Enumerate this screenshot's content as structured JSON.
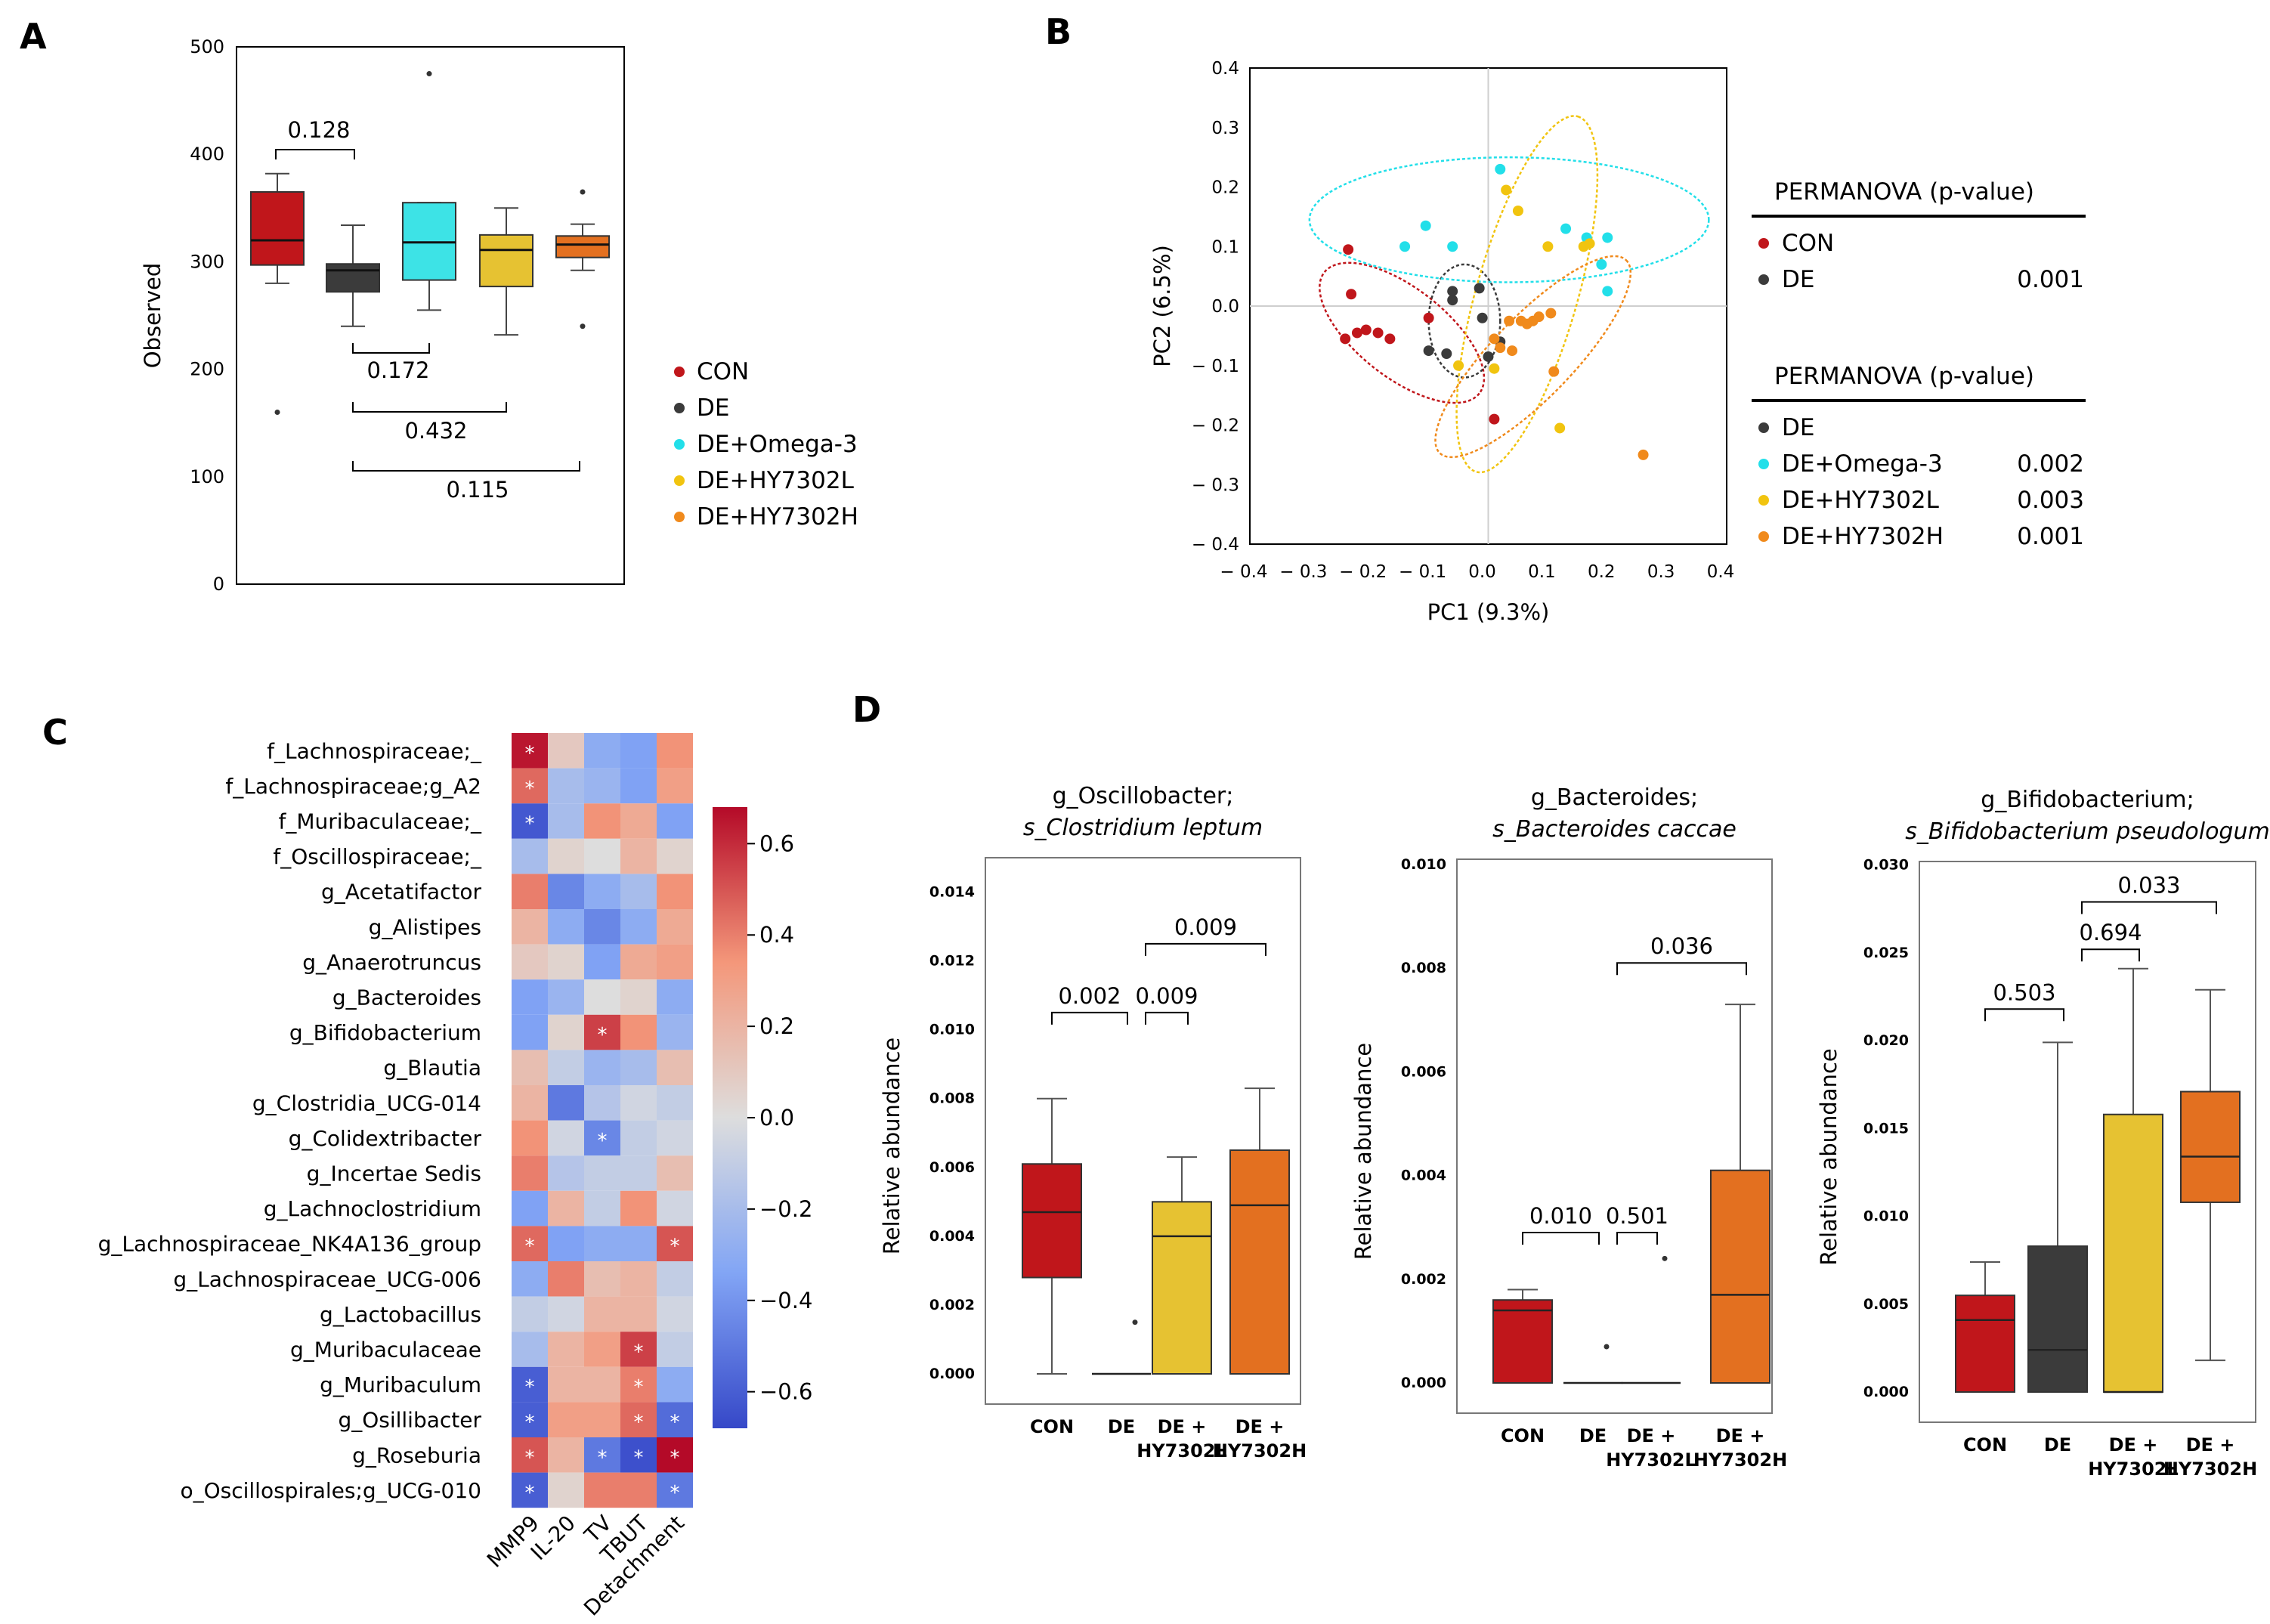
{
  "panel_labels": {
    "A": "A",
    "B": "B",
    "C": "C",
    "D": "D"
  },
  "groups": [
    {
      "name": "CON",
      "color": "#c0161b"
    },
    {
      "name": "DE",
      "color": "#3b3b3b"
    },
    {
      "name": "DE+Omega-3",
      "color": "#22dfe9"
    },
    {
      "name": "DE+HY7302L",
      "color": "#f1c40f"
    },
    {
      "name": "DE+HY7302H",
      "color": "#f08a1c"
    }
  ],
  "chart_data": [
    {
      "panel": "A",
      "type": "box",
      "ylabel": "Observed",
      "ylim": [
        0,
        500
      ],
      "yticks": [
        0,
        100,
        200,
        300,
        400,
        500
      ],
      "boxes": [
        {
          "group": "CON",
          "whisker_low": 280,
          "q1": 297,
          "median": 320,
          "q3": 365,
          "whisker_high": 382,
          "outliers": [
            160
          ]
        },
        {
          "group": "DE",
          "whisker_low": 240,
          "q1": 272,
          "median": 292,
          "q3": 298,
          "whisker_high": 334,
          "outliers": []
        },
        {
          "group": "DE+Omega-3",
          "whisker_low": 255,
          "q1": 283,
          "median": 318,
          "q3": 355,
          "whisker_high": 355,
          "outliers": [
            475
          ]
        },
        {
          "group": "DE+HY7302L",
          "whisker_low": 232,
          "q1": 277,
          "median": 311,
          "q3": 325,
          "whisker_high": 350,
          "outliers": []
        },
        {
          "group": "DE+HY7302H",
          "whisker_low": 292,
          "q1": 304,
          "median": 316,
          "q3": 324,
          "whisker_high": 335,
          "outliers": [
            240,
            365
          ]
        }
      ],
      "brackets": [
        {
          "from": 0,
          "to": 1,
          "label": "0.128",
          "position": "above"
        },
        {
          "from": 1,
          "to": 2,
          "label": "0.172",
          "position": "below"
        },
        {
          "from": 1,
          "to": 3,
          "label": "0.432",
          "position": "below"
        },
        {
          "from": 1,
          "to": 4,
          "label": "0.115",
          "position": "below"
        }
      ]
    },
    {
      "panel": "B",
      "type": "scatter",
      "xlabel": "PC1 (9.3%)",
      "ylabel": "PC2 (6.5%)",
      "xlim": [
        -0.4,
        0.4
      ],
      "ylim": [
        -0.4,
        0.4
      ],
      "xticks": [
        "− 0.4",
        "− 0.3",
        "− 0.2",
        "− 0.1",
        "0.0",
        "0.1",
        "0.2",
        "0.3",
        "0.4"
      ],
      "yticks": [
        "0.4",
        "0.3",
        "0.2",
        "0.1",
        "0.0",
        "− 0.1",
        "− 0.2",
        "− 0.3",
        "− 0.4"
      ],
      "series": [
        {
          "group": "CON",
          "points": [
            [
              -0.235,
              0.095
            ],
            [
              -0.23,
              0.02
            ],
            [
              -0.24,
              -0.055
            ],
            [
              -0.22,
              -0.045
            ],
            [
              -0.205,
              -0.04
            ],
            [
              -0.185,
              -0.045
            ],
            [
              -0.165,
              -0.055
            ],
            [
              -0.1,
              -0.02
            ],
            [
              0.01,
              -0.19
            ]
          ]
        },
        {
          "group": "DE",
          "points": [
            [
              -0.06,
              0.025
            ],
            [
              -0.06,
              0.01
            ],
            [
              -0.015,
              0.03
            ],
            [
              -0.1,
              -0.075
            ],
            [
              -0.07,
              -0.08
            ],
            [
              -0.01,
              -0.02
            ],
            [
              0.0,
              -0.085
            ],
            [
              0.02,
              -0.06
            ]
          ]
        },
        {
          "group": "DE+Omega-3",
          "points": [
            [
              0.02,
              0.23
            ],
            [
              0.13,
              0.13
            ],
            [
              0.165,
              0.115
            ],
            [
              0.2,
              0.115
            ],
            [
              0.19,
              0.07
            ],
            [
              0.2,
              0.025
            ],
            [
              -0.105,
              0.135
            ],
            [
              -0.14,
              0.1
            ],
            [
              -0.06,
              0.1
            ]
          ]
        },
        {
          "group": "DE+HY7302L",
          "points": [
            [
              0.03,
              0.195
            ],
            [
              0.05,
              0.16
            ],
            [
              0.1,
              0.1
            ],
            [
              0.16,
              0.1
            ],
            [
              0.17,
              0.105
            ],
            [
              -0.05,
              -0.1
            ],
            [
              0.01,
              -0.105
            ],
            [
              0.12,
              -0.205
            ]
          ]
        },
        {
          "group": "DE+HY7302H",
          "points": [
            [
              0.035,
              -0.025
            ],
            [
              0.055,
              -0.025
            ],
            [
              0.075,
              -0.025
            ],
            [
              0.065,
              -0.03
            ],
            [
              0.085,
              -0.018
            ],
            [
              0.105,
              -0.012
            ],
            [
              0.01,
              -0.055
            ],
            [
              0.02,
              -0.07
            ],
            [
              0.04,
              -0.075
            ],
            [
              0.11,
              -0.11
            ],
            [
              0.26,
              -0.25
            ]
          ]
        }
      ],
      "legend": [
        {
          "title": "PERMANOVA (p-value)",
          "rows": [
            {
              "group": "CON",
              "p": ""
            },
            {
              "group": "DE",
              "p": "0.001"
            }
          ]
        },
        {
          "title": "PERMANOVA (p-value)",
          "rows": [
            {
              "group": "DE",
              "p": ""
            },
            {
              "group": "DE+Omega-3",
              "p": "0.002"
            },
            {
              "group": "DE+HY7302L",
              "p": "0.003"
            },
            {
              "group": "DE+HY7302H",
              "p": "0.001"
            }
          ]
        }
      ]
    },
    {
      "panel": "C",
      "type": "heatmap",
      "rows": [
        "f_Lachnospiraceae;_",
        "f_Lachnospiraceae;g_A2",
        "f_Muribaculaceae;_",
        "f_Oscillospiraceae;_",
        "g_Acetatifactor",
        "g_Alistipes",
        "g_Anaerotruncus",
        "g_Bacteroides",
        "g_Bifidobacterium",
        "g_Blautia",
        "g_Clostridia_UCG-014",
        "g_Colidextribacter",
        "g_Incertae Sedis",
        "g_Lachnoclostridium",
        "g_Lachnospiraceae_NK4A136_group",
        "g_Lachnospiraceae_UCG-006",
        "g_Lactobacillus",
        "g_Muribaculaceae",
        "g_Muribaculum",
        "g_Osillibacter",
        "g_Roseburia",
        "o_Oscillospirales;g_UCG-010"
      ],
      "columns": [
        "MMP9",
        "IL-20",
        "TV",
        "TBUT",
        "Detachment"
      ],
      "values": [
        [
          0.65,
          0.1,
          -0.3,
          -0.35,
          0.35
        ],
        [
          0.45,
          -0.2,
          -0.25,
          -0.35,
          0.3
        ],
        [
          -0.62,
          -0.2,
          0.35,
          0.25,
          -0.35
        ],
        [
          -0.2,
          0.05,
          0.0,
          0.2,
          0.05
        ],
        [
          0.4,
          -0.45,
          -0.3,
          -0.2,
          0.35
        ],
        [
          0.2,
          -0.3,
          -0.45,
          -0.3,
          0.25
        ],
        [
          0.1,
          0.05,
          -0.35,
          0.25,
          0.3
        ],
        [
          -0.35,
          -0.25,
          0.0,
          0.05,
          -0.3
        ],
        [
          -0.35,
          0.05,
          0.55,
          0.35,
          -0.25
        ],
        [
          0.15,
          -0.1,
          -0.25,
          -0.2,
          0.15
        ],
        [
          0.2,
          -0.5,
          -0.15,
          -0.05,
          -0.1
        ],
        [
          0.35,
          -0.05,
          -0.45,
          -0.1,
          -0.05
        ],
        [
          0.4,
          -0.15,
          -0.1,
          -0.1,
          0.15
        ],
        [
          -0.35,
          0.2,
          -0.1,
          0.35,
          -0.05
        ],
        [
          0.45,
          -0.35,
          -0.3,
          -0.3,
          0.5
        ],
        [
          -0.3,
          0.4,
          0.15,
          0.2,
          -0.1
        ],
        [
          -0.1,
          -0.05,
          0.2,
          0.2,
          -0.05
        ],
        [
          -0.2,
          0.2,
          0.3,
          0.55,
          -0.1
        ],
        [
          -0.6,
          0.2,
          0.2,
          0.4,
          -0.3
        ],
        [
          -0.6,
          0.3,
          0.3,
          0.45,
          -0.55
        ],
        [
          0.5,
          0.2,
          -0.5,
          -0.65,
          0.7
        ],
        [
          -0.6,
          0.05,
          0.4,
          0.4,
          -0.5
        ]
      ],
      "significant": [
        [
          0,
          0
        ],
        [
          1,
          0
        ],
        [
          2,
          0
        ],
        [
          8,
          2
        ],
        [
          11,
          2
        ],
        [
          14,
          0
        ],
        [
          14,
          4
        ],
        [
          17,
          3
        ],
        [
          18,
          0
        ],
        [
          18,
          3
        ],
        [
          19,
          0
        ],
        [
          19,
          3
        ],
        [
          19,
          4
        ],
        [
          20,
          0
        ],
        [
          20,
          2
        ],
        [
          20,
          3
        ],
        [
          20,
          4
        ],
        [
          21,
          0
        ],
        [
          21,
          4
        ]
      ],
      "colorbar": {
        "range": [
          -0.68,
          0.68
        ],
        "ticks": [
          0.6,
          0.4,
          0.2,
          0.0,
          -0.2,
          -0.4,
          -0.6
        ],
        "tick_labels": [
          "0.6",
          "0.4",
          "0.2",
          "0.0",
          "−0.2",
          "−0.4",
          "−0.6"
        ]
      }
    },
    {
      "panel": "D1",
      "type": "box",
      "title_line1": "g_Oscillobacter;",
      "title_line2": "s_Clostridium leptum",
      "ylabel": "Relative abundance",
      "ylim": [
        0,
        0.015
      ],
      "yticks": [
        "0.000",
        "0.002",
        "0.004",
        "0.006",
        "0.008",
        "0.010",
        "0.012",
        "0.014"
      ],
      "ytick_values": [
        0,
        0.002,
        0.004,
        0.006,
        0.008,
        0.01,
        0.012,
        0.014
      ],
      "categories": [
        "CON",
        "DE",
        "DE +\nHY7302L",
        "DE +\nHY7302H"
      ],
      "boxes": [
        {
          "group": "CON",
          "whisker_low": 0.0,
          "q1": 0.0028,
          "median": 0.0047,
          "q3": 0.0061,
          "whisker_high": 0.008,
          "outliers": []
        },
        {
          "group": "DE",
          "whisker_low": 0.0,
          "q1": 0.0,
          "median": 0.0,
          "q3": 0.0,
          "whisker_high": 0.0,
          "outliers": [
            0.0015
          ]
        },
        {
          "group": "DE+HY7302L",
          "whisker_low": 0.0,
          "q1": 0.0,
          "median": 0.004,
          "q3": 0.005,
          "whisker_high": 0.0063,
          "outliers": []
        },
        {
          "group": "DE+HY7302H",
          "whisker_low": 0.0,
          "q1": 0.0,
          "median": 0.0049,
          "q3": 0.0065,
          "whisker_high": 0.0083,
          "outliers": []
        }
      ],
      "brackets": [
        {
          "from": 0,
          "to": 1,
          "label": "0.002",
          "level": 0.0105
        },
        {
          "from": 1,
          "to": 2,
          "label": "0.009",
          "level": 0.0105
        },
        {
          "from": 1,
          "to": 3,
          "label": "0.009",
          "level": 0.0125
        }
      ]
    },
    {
      "panel": "D2",
      "type": "box",
      "title_line1": "g_Bacteroides;",
      "title_line2": "s_Bacteroides caccae",
      "ylabel": "Relative abundance",
      "ylim": [
        0,
        0.0101
      ],
      "yticks": [
        "0.000",
        "0.002",
        "0.004",
        "0.006",
        "0.008",
        "0.010"
      ],
      "ytick_values": [
        0,
        0.002,
        0.004,
        0.006,
        0.008,
        0.01
      ],
      "categories": [
        "CON",
        "DE",
        "DE +\nHY7302L",
        "DE +\nHY7302H"
      ],
      "boxes": [
        {
          "group": "CON",
          "whisker_low": 0.0,
          "q1": 0.0,
          "median": 0.0014,
          "q3": 0.0016,
          "whisker_high": 0.0018,
          "outliers": []
        },
        {
          "group": "DE",
          "whisker_low": 0.0,
          "q1": 0.0,
          "median": 0.0,
          "q3": 0.0,
          "whisker_high": 0.0,
          "outliers": [
            0.0007
          ]
        },
        {
          "group": "DE+HY7302L",
          "whisker_low": 0.0,
          "q1": 0.0,
          "median": 0.0,
          "q3": 0.0,
          "whisker_high": 0.0,
          "outliers": [
            0.0024
          ]
        },
        {
          "group": "DE+HY7302H",
          "whisker_low": 0.0,
          "q1": 0.0,
          "median": 0.0017,
          "q3": 0.0041,
          "whisker_high": 0.0073,
          "outliers": []
        }
      ],
      "brackets": [
        {
          "from": 0,
          "to": 1,
          "label": "0.010",
          "level": 0.0029
        },
        {
          "from": 1,
          "to": 2,
          "label": "0.501",
          "level": 0.0029
        },
        {
          "from": 1,
          "to": 3,
          "label": "0.036",
          "level": 0.0081
        }
      ]
    },
    {
      "panel": "D3",
      "type": "box",
      "title_line1": "g_Bifidobacterium;",
      "title_line2": "s_Bifidobacterium pseudologum",
      "ylabel": "Relative abundance",
      "ylim": [
        0,
        0.0302
      ],
      "yticks": [
        "0.000",
        "0.005",
        "0.010",
        "0.015",
        "0.020",
        "0.025",
        "0.030"
      ],
      "ytick_values": [
        0,
        0.005,
        0.01,
        0.015,
        0.02,
        0.025,
        0.03
      ],
      "categories": [
        "CON",
        "DE",
        "DE +\nHY7302L",
        "DE +\nHY7302H"
      ],
      "boxes": [
        {
          "group": "CON",
          "whisker_low": 0.0,
          "q1": 0.0,
          "median": 0.0041,
          "q3": 0.0055,
          "whisker_high": 0.0074,
          "outliers": []
        },
        {
          "group": "DE",
          "whisker_low": 0.0,
          "q1": 0.0,
          "median": 0.0024,
          "q3": 0.0083,
          "whisker_high": 0.0199,
          "outliers": []
        },
        {
          "group": "DE+HY7302L",
          "whisker_low": 0.0,
          "q1": 0.0,
          "median": 0.0,
          "q3": 0.0158,
          "whisker_high": 0.0241,
          "outliers": []
        },
        {
          "group": "DE+HY7302H",
          "whisker_low": 0.0018,
          "q1": 0.0108,
          "median": 0.0134,
          "q3": 0.0171,
          "whisker_high": 0.0229,
          "outliers": []
        }
      ],
      "brackets": [
        {
          "from": 0,
          "to": 1,
          "label": "0.503",
          "level": 0.0218
        },
        {
          "from": 1,
          "to": 2,
          "label": "0.694",
          "level": 0.0252
        },
        {
          "from": 1,
          "to": 3,
          "label": "0.033",
          "level": 0.0279
        }
      ]
    }
  ]
}
